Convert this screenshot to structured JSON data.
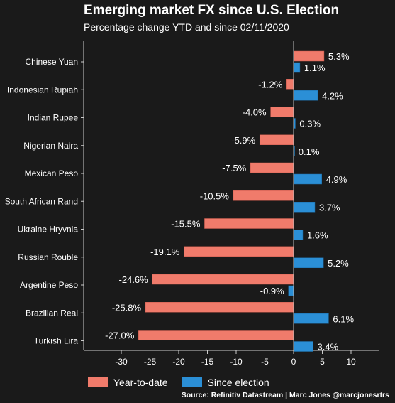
{
  "chart_data": {
    "type": "bar",
    "orientation": "horizontal",
    "title": "Emerging market FX since U.S. Election",
    "subtitle": "Percentage change YTD and since 02/11/2020",
    "categories": [
      "Chinese Yuan",
      "Indonesian Rupiah",
      "Indian Rupee",
      "Nigerian Naira",
      "Mexican Peso",
      "South African Rand",
      "Ukraine Hryvnia",
      "Russian Rouble",
      "Argentine Peso",
      "Brazilian Real",
      "Turkish Lira"
    ],
    "series": [
      {
        "name": "Year-to-date",
        "color": "#f07b6b",
        "values": [
          5.3,
          -1.2,
          -4.0,
          -5.9,
          -7.5,
          -10.5,
          -15.5,
          -19.1,
          -24.6,
          -25.8,
          -27.0
        ],
        "labels": [
          "5.3%",
          "-1.2%",
          "-4.0%",
          "-5.9%",
          "-7.5%",
          "-10.5%",
          "-15.5%",
          "-19.1%",
          "-24.6%",
          "-25.8%",
          "-27.0%"
        ]
      },
      {
        "name": "Since election",
        "color": "#2b8fd6",
        "values": [
          1.1,
          4.2,
          0.3,
          0.1,
          4.9,
          3.7,
          1.6,
          5.2,
          -0.9,
          6.1,
          3.4
        ],
        "labels": [
          "1.1%",
          "4.2%",
          "0.3%",
          "0.1%",
          "4.9%",
          "3.7%",
          "1.6%",
          "5.2%",
          "-0.9%",
          "6.1%",
          "3.4%"
        ]
      }
    ],
    "xlim": [
      -30,
      10
    ],
    "xticks": [
      -30,
      -25,
      -20,
      -15,
      -10,
      -5,
      0,
      5,
      10
    ],
    "grid": false,
    "legend": "bottom-left"
  },
  "source": "Source: Refinitiv Datastream | Marc Jones @marcjonesrtrs"
}
